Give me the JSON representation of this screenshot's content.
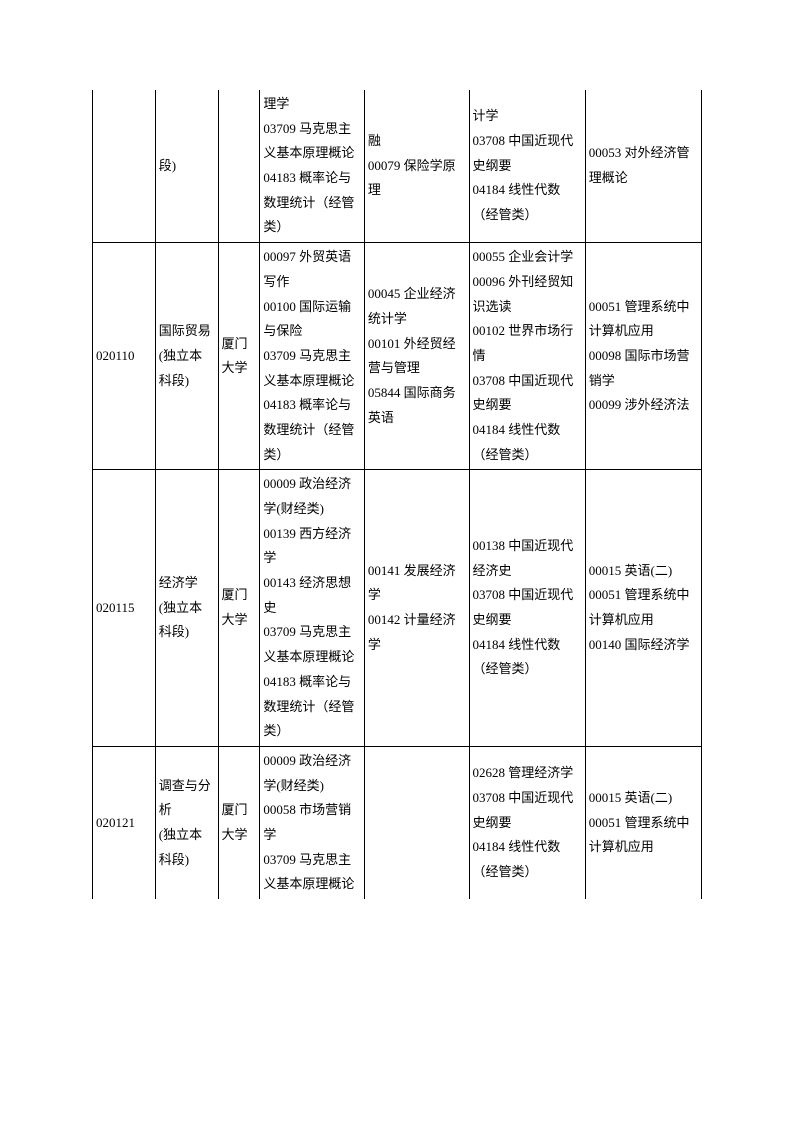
{
  "table": {
    "rows": [
      {
        "code": "",
        "name": "段)",
        "school": "",
        "col4": "理学\n03709 马克思主义基本原理概论\n04183 概率论与数理统计（经管类）",
        "col5": "融\n00079 保险学原理",
        "col6": "计学\n03708 中国近现代史纲要\n04184 线性代数（经管类）",
        "col7": "00053 对外经济管理概论"
      },
      {
        "code": "020110",
        "name": "国际贸易\n(独立本科段)",
        "school": "厦门大学",
        "col4": "00097 外贸英语写作\n00100 国际运输与保险\n03709 马克思主义基本原理概论\n04183 概率论与数理统计（经管类）",
        "col5": "00045 企业经济统计学\n00101 外经贸经营与管理\n05844 国际商务英语",
        "col6": "00055 企业会计学\n00096 外刊经贸知识选读\n00102 世界市场行情\n03708 中国近现代史纲要\n04184 线性代数（经管类）",
        "col7": "00051 管理系统中计算机应用\n00098 国际市场营销学\n00099 涉外经济法"
      },
      {
        "code": "020115",
        "name": "经济学\n(独立本科段)",
        "school": "厦门大学",
        "col4": "00009 政治经济学(财经类)\n00139 西方经济学\n00143 经济思想史\n03709 马克思主义基本原理概论\n04183 概率论与数理统计（经管类）",
        "col5": "00141 发展经济学\n00142 计量经济学",
        "col6": "00138 中国近现代经济史\n03708 中国近现代史纲要\n04184 线性代数（经管类）",
        "col7": "00015 英语(二)\n00051 管理系统中计算机应用\n00140 国际经济学"
      },
      {
        "code": "020121",
        "name": "调查与分析\n(独立本科段)",
        "school": "厦门大学",
        "col4": "00009 政治经济学(财经类)\n00058 市场营销学\n03709 马克思主义基本原理概论",
        "col5": "",
        "col6": "02628 管理经济学\n03708 中国近现代史纲要\n04184 线性代数（经管类）",
        "col7": "00015 英语(二)\n00051 管理系统中计算机应用"
      }
    ]
  }
}
